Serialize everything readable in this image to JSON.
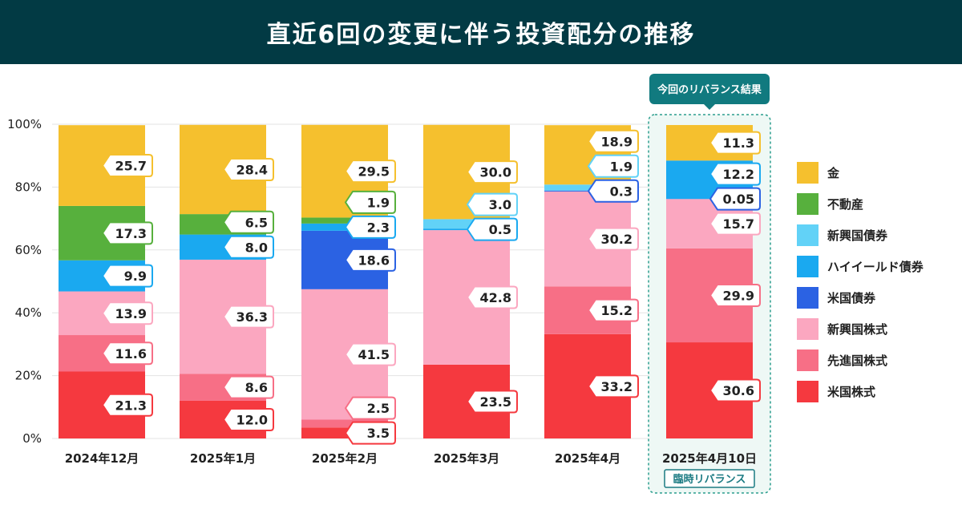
{
  "header": {
    "title": "直近6回の変更に伴う投資配分の推移"
  },
  "chart_data": {
    "type": "bar",
    "stacked": true,
    "title": "直近6回の変更に伴う投資配分の推移",
    "ylim": [
      0,
      100
    ],
    "y_ticks": [
      "0%",
      "20%",
      "40%",
      "60%",
      "80%",
      "100%"
    ],
    "categories": [
      "2024年12月",
      "2025年1月",
      "2025年2月",
      "2025年3月",
      "2025年4月",
      "2025年4月10日"
    ],
    "series": [
      {
        "name": "米国株式",
        "color": "#f5393f",
        "values": [
          21.3,
          12.0,
          3.5,
          23.5,
          33.2,
          30.6
        ],
        "labels": [
          "21.3",
          "12.0",
          "3.5",
          "23.5",
          "33.2",
          "30.6"
        ]
      },
      {
        "name": "先進国株式",
        "color": "#f76f86",
        "values": [
          11.6,
          8.6,
          2.5,
          0,
          15.2,
          29.9
        ],
        "labels": [
          "11.6",
          "8.6",
          "2.5",
          "",
          "15.2",
          "29.9"
        ]
      },
      {
        "name": "新興国株式",
        "color": "#fba7c0",
        "values": [
          13.9,
          36.3,
          41.5,
          42.8,
          30.2,
          15.7
        ],
        "labels": [
          "13.9",
          "36.3",
          "41.5",
          "42.8",
          "30.2",
          "15.7"
        ]
      },
      {
        "name": "米国債券",
        "color": "#2b62e3",
        "values": [
          0,
          0,
          18.6,
          0,
          0.3,
          0.05
        ],
        "labels": [
          "",
          "",
          "18.6",
          "",
          "0.3",
          "0.05"
        ]
      },
      {
        "name": "ハイイールド債券",
        "color": "#1aa9f0",
        "values": [
          9.9,
          8.0,
          2.3,
          0.5,
          0,
          12.2
        ],
        "labels": [
          "9.9",
          "8.0",
          "2.3",
          "0.5",
          "",
          "12.2"
        ]
      },
      {
        "name": "新興国債券",
        "color": "#62d2f7",
        "values": [
          0,
          0,
          0,
          3.0,
          1.9,
          0
        ],
        "labels": [
          "",
          "",
          "",
          "3.0",
          "1.9",
          ""
        ]
      },
      {
        "name": "不動産",
        "color": "#57b03d",
        "values": [
          17.3,
          6.5,
          1.9,
          0,
          0,
          0
        ],
        "labels": [
          "17.3",
          "6.5",
          "1.9",
          "",
          "",
          ""
        ]
      },
      {
        "name": "金",
        "color": "#f5c02e",
        "values": [
          25.7,
          28.4,
          29.5,
          30.0,
          18.9,
          11.3
        ],
        "labels": [
          "25.7",
          "28.4",
          "29.5",
          "30.0",
          "18.9",
          "11.3"
        ]
      }
    ],
    "legend_order": [
      "金",
      "不動産",
      "新興国債券",
      "ハイイールド債券",
      "米国債券",
      "新興国株式",
      "先進国株式",
      "米国株式"
    ],
    "legend_position": "right",
    "annotations": {
      "highlight_top": "今回のリバランス結果",
      "highlight_bottom": "臨時リバランス"
    }
  }
}
